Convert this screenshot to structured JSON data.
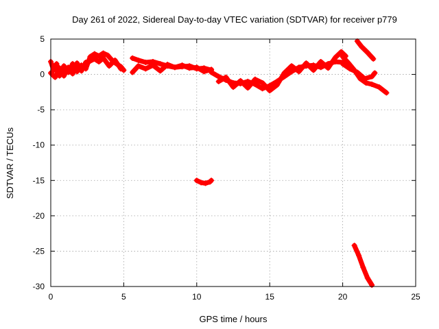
{
  "chart_data": {
    "type": "scatter",
    "title": "Day 261 of 2022, Sidereal Day-to-day VTEC variation (SDTVAR) for receiver p779",
    "xlabel": "GPS time / hours",
    "ylabel": "SDTVAR / TECUs",
    "xlim": [
      0,
      25
    ],
    "ylim": [
      -30,
      5
    ],
    "xticks": [
      0,
      5,
      10,
      15,
      20,
      25
    ],
    "yticks": [
      5,
      0,
      -5,
      -10,
      -15,
      -20,
      -25,
      -30
    ],
    "grid": true,
    "legend": "none",
    "series": [
      {
        "name": "SDTVAR",
        "color": "#ff0000",
        "marker": "plus",
        "segments": [
          [
            [
              0.0,
              1.8
            ],
            [
              0.2,
              0.6
            ],
            [
              0.4,
              1.5
            ],
            [
              0.6,
              -0.2
            ],
            [
              0.9,
              1.2
            ],
            [
              1.2,
              0.3
            ],
            [
              1.5,
              1.5
            ],
            [
              1.8,
              0.4
            ],
            [
              2.1,
              1.3
            ],
            [
              2.4,
              0.8
            ],
            [
              2.7,
              2.5
            ],
            [
              3.0,
              2.9
            ],
            [
              3.3,
              2.6
            ],
            [
              3.6,
              3.0
            ],
            [
              3.9,
              2.7
            ],
            [
              4.2,
              2.0
            ],
            [
              4.5,
              1.5
            ],
            [
              4.8,
              1.1
            ],
            [
              5.0,
              0.6
            ]
          ],
          [
            [
              0.0,
              0.2
            ],
            [
              0.3,
              -0.4
            ],
            [
              0.6,
              0.9
            ],
            [
              0.9,
              -0.2
            ],
            [
              1.2,
              1.0
            ],
            [
              1.5,
              0.1
            ],
            [
              1.8,
              1.6
            ],
            [
              2.1,
              0.5
            ],
            [
              2.4,
              1.7
            ],
            [
              2.7,
              1.9
            ],
            [
              3.0,
              2.2
            ],
            [
              3.3,
              1.8
            ],
            [
              3.6,
              2.3
            ],
            [
              4.0,
              1.2
            ],
            [
              4.4,
              2.0
            ],
            [
              4.8,
              0.8
            ]
          ],
          [
            [
              5.6,
              2.3
            ],
            [
              6.0,
              2.0
            ],
            [
              6.5,
              1.7
            ],
            [
              7.0,
              1.8
            ],
            [
              7.5,
              1.5
            ],
            [
              8.0,
              1.2
            ],
            [
              8.5,
              1.0
            ],
            [
              9.0,
              1.1
            ],
            [
              9.5,
              1.2
            ],
            [
              10.0,
              0.8
            ],
            [
              10.5,
              0.9
            ],
            [
              11.0,
              0.6
            ]
          ],
          [
            [
              5.6,
              0.3
            ],
            [
              6.0,
              1.2
            ],
            [
              6.5,
              0.8
            ],
            [
              7.0,
              1.3
            ],
            [
              7.5,
              0.5
            ],
            [
              8.0,
              1.4
            ],
            [
              8.5,
              1.0
            ],
            [
              9.0,
              1.3
            ],
            [
              9.5,
              0.9
            ],
            [
              10.0,
              1.0
            ],
            [
              10.5,
              0.4
            ],
            [
              11.0,
              0.7
            ]
          ],
          [
            [
              11.0,
              0.3
            ],
            [
              11.5,
              -0.3
            ],
            [
              12.0,
              -0.8
            ],
            [
              12.5,
              -1.2
            ],
            [
              13.0,
              -1.3
            ],
            [
              13.5,
              -1.0
            ],
            [
              14.0,
              -1.4
            ],
            [
              14.5,
              -2.0
            ],
            [
              15.0,
              -1.6
            ],
            [
              15.5,
              -1.0
            ],
            [
              16.0,
              -0.3
            ],
            [
              16.5,
              0.4
            ],
            [
              17.0,
              1.0
            ],
            [
              17.5,
              1.2
            ],
            [
              18.0,
              1.3
            ],
            [
              18.5,
              1.0
            ],
            [
              19.0,
              1.5
            ],
            [
              19.5,
              1.8
            ],
            [
              20.0,
              1.7
            ]
          ],
          [
            [
              11.5,
              -1.0
            ],
            [
              12.0,
              -0.4
            ],
            [
              12.5,
              -1.8
            ],
            [
              13.0,
              -0.9
            ],
            [
              13.5,
              -1.9
            ],
            [
              14.0,
              -0.7
            ],
            [
              14.5,
              -1.2
            ],
            [
              15.0,
              -2.3
            ],
            [
              15.5,
              -1.5
            ],
            [
              16.0,
              0.2
            ],
            [
              16.5,
              1.2
            ],
            [
              17.0,
              0.4
            ],
            [
              17.5,
              1.6
            ],
            [
              18.0,
              0.6
            ],
            [
              18.5,
              1.8
            ],
            [
              19.0,
              0.9
            ],
            [
              19.5,
              2.4
            ],
            [
              19.9,
              3.2
            ],
            [
              20.2,
              2.6
            ]
          ],
          [
            [
              20.0,
              1.5
            ],
            [
              20.5,
              0.8
            ],
            [
              21.0,
              0.3
            ],
            [
              21.5,
              -0.6
            ],
            [
              22.0,
              -0.3
            ],
            [
              22.2,
              0.2
            ]
          ],
          [
            [
              20.0,
              2.5
            ],
            [
              20.4,
              1.6
            ],
            [
              20.8,
              0.6
            ],
            [
              21.2,
              -0.6
            ],
            [
              21.6,
              -1.2
            ],
            [
              22.0,
              -1.4
            ],
            [
              22.5,
              -1.8
            ],
            [
              23.0,
              -2.6
            ]
          ],
          [
            [
              21.0,
              4.7
            ],
            [
              21.3,
              3.9
            ],
            [
              21.7,
              3.1
            ],
            [
              22.1,
              2.2
            ]
          ],
          [
            [
              10.0,
              -15.0
            ],
            [
              10.3,
              -15.3
            ],
            [
              10.6,
              -15.4
            ],
            [
              10.9,
              -15.2
            ],
            [
              11.0,
              -15.0
            ]
          ],
          [
            [
              20.8,
              -24.2
            ],
            [
              21.1,
              -25.6
            ],
            [
              21.4,
              -27.3
            ],
            [
              21.7,
              -28.8
            ],
            [
              22.0,
              -29.8
            ]
          ]
        ]
      }
    ]
  }
}
